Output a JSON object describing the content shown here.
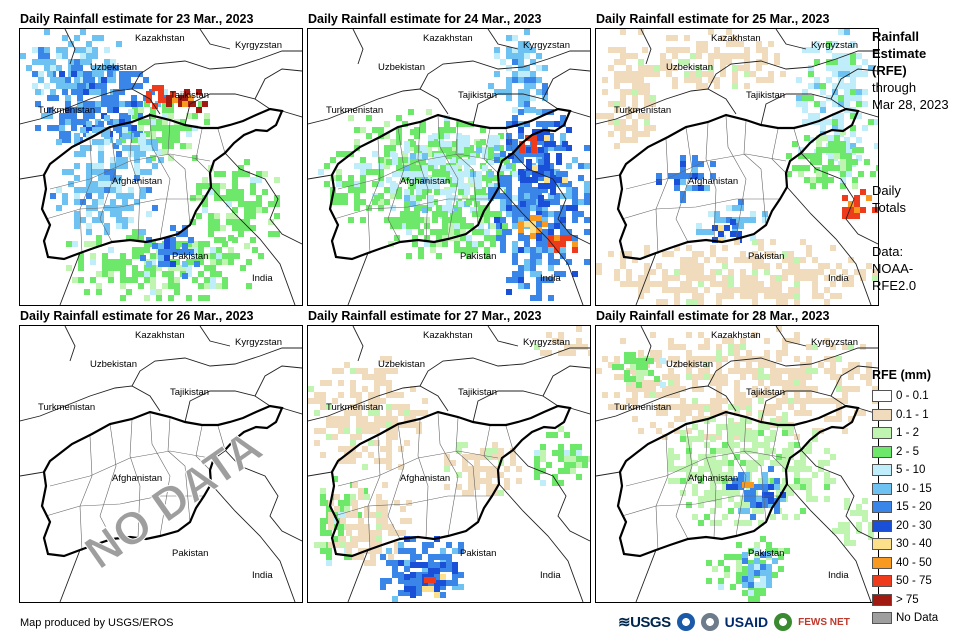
{
  "panels": [
    {
      "title": "Daily Rainfall estimate for 23 Mar., 2023",
      "overlay": ""
    },
    {
      "title": "Daily Rainfall estimate for 24 Mar., 2023",
      "overlay": ""
    },
    {
      "title": "Daily Rainfall estimate for 25 Mar., 2023",
      "overlay": ""
    },
    {
      "title": "Daily Rainfall estimate for 26 Mar., 2023",
      "overlay": "NO DATA"
    },
    {
      "title": "Daily Rainfall estimate for 27 Mar., 2023",
      "overlay": ""
    },
    {
      "title": "Daily Rainfall estimate for 28 Mar., 2023",
      "overlay": ""
    }
  ],
  "map_labels": {
    "kazakhstan": "Kazakhstan",
    "kyrgyzstan": "Kyrgyzstan",
    "uzbekistan": "Uzbekistan",
    "tajikistan": "Tajikistan",
    "turkmenistan": "Turkmenistan",
    "afghanistan": "Afghanistan",
    "pakistan": "Pakistan",
    "india": "India"
  },
  "side": {
    "title_line1": "Rainfall",
    "title_line2": "Estimate",
    "title_line3": "(RFE)",
    "through": "through",
    "date": "Mar 28, 2023",
    "daily": "Daily",
    "totals": "Totals",
    "data_label": "Data:",
    "source1": "NOAA-",
    "source2": "RFE2.0"
  },
  "legend": {
    "title": "RFE (mm)",
    "items": [
      {
        "label": "0 - 0.1",
        "color": "#ffffff"
      },
      {
        "label": "0.1 - 1",
        "color": "#f0dcbc"
      },
      {
        "label": "1 - 2",
        "color": "#bff5b0"
      },
      {
        "label": "2 - 5",
        "color": "#6ee86a"
      },
      {
        "label": "5 - 10",
        "color": "#bfeefa"
      },
      {
        "label": "10 - 15",
        "color": "#6ec2f2"
      },
      {
        "label": "15 - 20",
        "color": "#3a86e8"
      },
      {
        "label": "20 - 30",
        "color": "#1a4fd8"
      },
      {
        "label": "30 - 40",
        "color": "#fce08a"
      },
      {
        "label": "40 - 50",
        "color": "#f79a1f"
      },
      {
        "label": "50 - 75",
        "color": "#ee3b1c"
      },
      {
        "label": "> 75",
        "color": "#a11a12"
      },
      {
        "label": "No Data",
        "color": "#9e9e9e"
      }
    ]
  },
  "credit": "Map produced by USGS/EROS",
  "logos": {
    "usgs": "≋USGS",
    "usaid": "USAID",
    "fews": "FEWS NET"
  }
}
